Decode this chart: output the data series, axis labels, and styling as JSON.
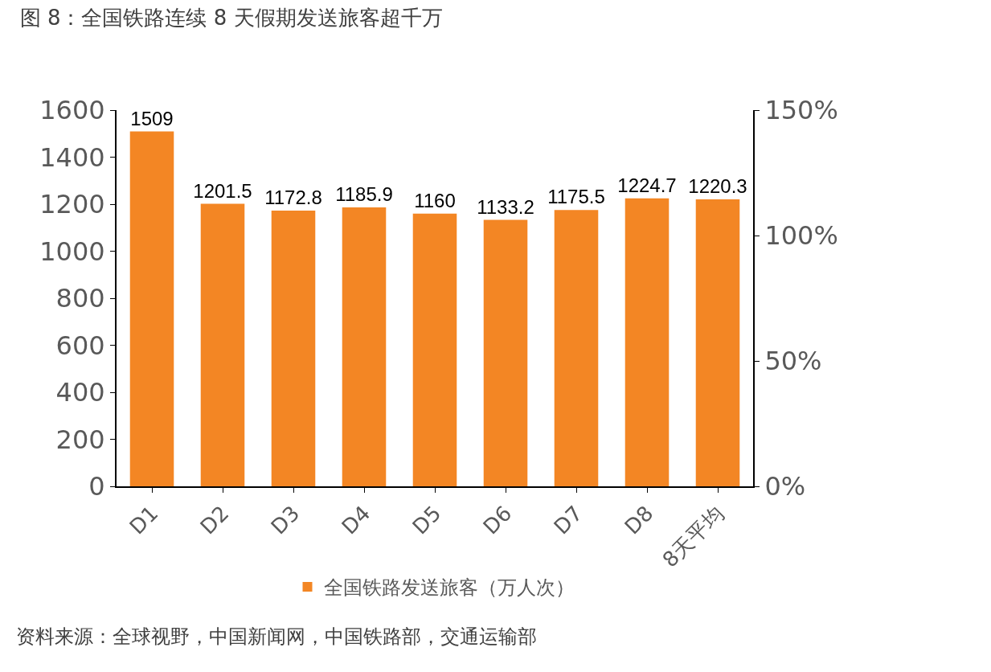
{
  "chart_data": {
    "type": "bar",
    "title": "图 8：全国铁路连续 8 天假期发送旅客超千万",
    "categories": [
      "D1",
      "D2",
      "D3",
      "D4",
      "D5",
      "D6",
      "D7",
      "D8",
      "8天平均"
    ],
    "series": [
      {
        "name": "全国铁路发送旅客（万人次）",
        "color": "#f38624",
        "values": [
          1509,
          1201.5,
          1172.8,
          1185.9,
          1160,
          1133.2,
          1175.5,
          1224.7,
          1220.3
        ]
      }
    ],
    "data_labels": true,
    "ylim": [
      0,
      1600
    ],
    "yticks": [
      0,
      200,
      400,
      600,
      800,
      1000,
      1200,
      1400,
      1600
    ],
    "y2lim": [
      0,
      150
    ],
    "y2ticks": [
      {
        "value": 0,
        "label": "0%"
      },
      {
        "value": 50,
        "label": "50%"
      },
      {
        "value": 100,
        "label": "100%"
      },
      {
        "value": 150,
        "label": "150%"
      }
    ],
    "grid": false,
    "legend": "bottom",
    "annotations": [
      "资料来源：全球视野，中国新闻网，中国铁路部，交通运输部"
    ]
  }
}
